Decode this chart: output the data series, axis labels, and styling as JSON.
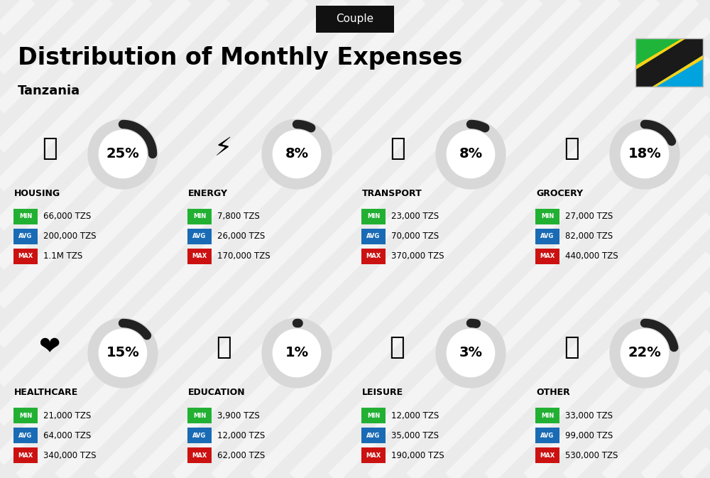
{
  "title": "Distribution of Monthly Expenses",
  "subtitle": "Tanzania",
  "badge": "Couple",
  "background_color": "#ebebeb",
  "categories": [
    {
      "name": "HOUSING",
      "percent": 25,
      "min": "66,000 TZS",
      "avg": "200,000 TZS",
      "max": "1.1M TZS",
      "row": 0,
      "col": 0
    },
    {
      "name": "ENERGY",
      "percent": 8,
      "min": "7,800 TZS",
      "avg": "26,000 TZS",
      "max": "170,000 TZS",
      "row": 0,
      "col": 1
    },
    {
      "name": "TRANSPORT",
      "percent": 8,
      "min": "23,000 TZS",
      "avg": "70,000 TZS",
      "max": "370,000 TZS",
      "row": 0,
      "col": 2
    },
    {
      "name": "GROCERY",
      "percent": 18,
      "min": "27,000 TZS",
      "avg": "82,000 TZS",
      "max": "440,000 TZS",
      "row": 0,
      "col": 3
    },
    {
      "name": "HEALTHCARE",
      "percent": 15,
      "min": "21,000 TZS",
      "avg": "64,000 TZS",
      "max": "340,000 TZS",
      "row": 1,
      "col": 0
    },
    {
      "name": "EDUCATION",
      "percent": 1,
      "min": "3,900 TZS",
      "avg": "12,000 TZS",
      "max": "62,000 TZS",
      "row": 1,
      "col": 1
    },
    {
      "name": "LEISURE",
      "percent": 3,
      "min": "12,000 TZS",
      "avg": "35,000 TZS",
      "max": "190,000 TZS",
      "row": 1,
      "col": 2
    },
    {
      "name": "OTHER",
      "percent": 22,
      "min": "33,000 TZS",
      "avg": "99,000 TZS",
      "max": "530,000 TZS",
      "row": 1,
      "col": 3
    }
  ],
  "color_min": "#22b033",
  "color_avg": "#1a6bb5",
  "color_max": "#cc1111",
  "stripe_color": "#ffffff",
  "stripe_alpha": 0.45,
  "circle_bg_color": "#d8d8d8",
  "circle_arc_color": "#222222",
  "flag_green": "#1eb53a",
  "flag_blue": "#00a3dd",
  "flag_black": "#1a1a1a",
  "flag_yellow": "#fcd116"
}
